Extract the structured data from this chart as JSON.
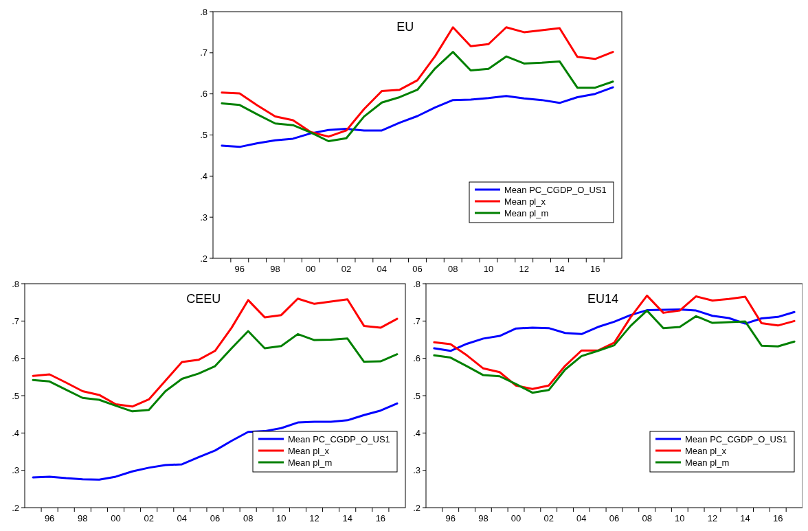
{
  "chart_data": [
    {
      "type": "line",
      "title": "EU",
      "x": [
        1995,
        1996,
        1997,
        1998,
        1999,
        2000,
        2001,
        2002,
        2003,
        2004,
        2005,
        2006,
        2007,
        2008,
        2009,
        2010,
        2011,
        2012,
        2013,
        2014,
        2015,
        2016,
        2017
      ],
      "xlim": [
        1994.5,
        2017.5
      ],
      "xticks": [
        {
          "value": 1995.5,
          "label": null
        },
        {
          "value": 1996,
          "label": "96"
        },
        {
          "value": 1996.5,
          "label": null
        },
        {
          "value": 1997.5,
          "label": null
        },
        {
          "value": 1998,
          "label": "98"
        },
        {
          "value": 1998.5,
          "label": null
        },
        {
          "value": 1999.5,
          "label": null
        },
        {
          "value": 2000,
          "label": "00"
        },
        {
          "value": 2000.5,
          "label": null
        },
        {
          "value": 2001.5,
          "label": null
        },
        {
          "value": 2002,
          "label": "02"
        },
        {
          "value": 2002.5,
          "label": null
        },
        {
          "value": 2003.5,
          "label": null
        },
        {
          "value": 2004,
          "label": "04"
        },
        {
          "value": 2004.5,
          "label": null
        },
        {
          "value": 2005.5,
          "label": null
        },
        {
          "value": 2006,
          "label": "06"
        },
        {
          "value": 2006.5,
          "label": null
        },
        {
          "value": 2007.5,
          "label": null
        },
        {
          "value": 2008,
          "label": "08"
        },
        {
          "value": 2008.5,
          "label": null
        },
        {
          "value": 2009.5,
          "label": null
        },
        {
          "value": 2010,
          "label": "10"
        },
        {
          "value": 2010.5,
          "label": null
        },
        {
          "value": 2011.5,
          "label": null
        },
        {
          "value": 2012,
          "label": "12"
        },
        {
          "value": 2012.5,
          "label": null
        },
        {
          "value": 2013.5,
          "label": null
        },
        {
          "value": 2014,
          "label": "14"
        },
        {
          "value": 2014.5,
          "label": null
        },
        {
          "value": 2015.5,
          "label": null
        },
        {
          "value": 2016,
          "label": "16"
        },
        {
          "value": 2016.5,
          "label": null
        }
      ],
      "ylim": [
        0.2,
        0.8
      ],
      "yticks": [
        {
          "value": 0.2,
          "label": ".2"
        },
        {
          "value": 0.3,
          "label": ".3"
        },
        {
          "value": 0.4,
          "label": ".4"
        },
        {
          "value": 0.5,
          "label": ".5"
        },
        {
          "value": 0.6,
          "label": ".6"
        },
        {
          "value": 0.7,
          "label": ".7"
        },
        {
          "value": 0.8,
          "label": ".8"
        }
      ],
      "legend": "bottom right",
      "series": [
        {
          "name": "Mean PC_CGDP_O_US1",
          "color": "#0000ff",
          "values": [
            0.474,
            0.471,
            0.48,
            0.487,
            0.491,
            0.504,
            0.512,
            0.515,
            0.511,
            0.511,
            0.53,
            0.546,
            0.567,
            0.585,
            0.586,
            0.59,
            0.595,
            0.589,
            0.585,
            0.578,
            0.592,
            0.6,
            0.616
          ]
        },
        {
          "name": "Mean pl_x",
          "color": "#ff0000",
          "values": [
            0.603,
            0.601,
            0.572,
            0.545,
            0.536,
            0.507,
            0.496,
            0.511,
            0.563,
            0.607,
            0.61,
            0.633,
            0.692,
            0.762,
            0.716,
            0.721,
            0.762,
            0.75,
            0.755,
            0.76,
            0.69,
            0.685,
            0.702
          ]
        },
        {
          "name": "Mean pl_m",
          "color": "#008000",
          "values": [
            0.577,
            0.573,
            0.55,
            0.528,
            0.524,
            0.506,
            0.485,
            0.492,
            0.545,
            0.579,
            0.592,
            0.61,
            0.662,
            0.702,
            0.657,
            0.661,
            0.691,
            0.674,
            0.676,
            0.679,
            0.615,
            0.615,
            0.63
          ]
        }
      ]
    },
    {
      "type": "line",
      "title": "CEEU",
      "x": [
        1995,
        1996,
        1997,
        1998,
        1999,
        2000,
        2001,
        2002,
        2003,
        2004,
        2005,
        2006,
        2007,
        2008,
        2009,
        2010,
        2011,
        2012,
        2013,
        2014,
        2015,
        2016,
        2017
      ],
      "xlim": [
        1994.5,
        2017.5
      ],
      "xticks": [
        {
          "value": 1995.5,
          "label": null
        },
        {
          "value": 1996,
          "label": "96"
        },
        {
          "value": 1996.5,
          "label": null
        },
        {
          "value": 1997.5,
          "label": null
        },
        {
          "value": 1998,
          "label": "98"
        },
        {
          "value": 1998.5,
          "label": null
        },
        {
          "value": 1999.5,
          "label": null
        },
        {
          "value": 2000,
          "label": "00"
        },
        {
          "value": 2000.5,
          "label": null
        },
        {
          "value": 2001.5,
          "label": null
        },
        {
          "value": 2002,
          "label": "02"
        },
        {
          "value": 2002.5,
          "label": null
        },
        {
          "value": 2003.5,
          "label": null
        },
        {
          "value": 2004,
          "label": "04"
        },
        {
          "value": 2004.5,
          "label": null
        },
        {
          "value": 2005.5,
          "label": null
        },
        {
          "value": 2006,
          "label": "06"
        },
        {
          "value": 2006.5,
          "label": null
        },
        {
          "value": 2007.5,
          "label": null
        },
        {
          "value": 2008,
          "label": "08"
        },
        {
          "value": 2008.5,
          "label": null
        },
        {
          "value": 2009.5,
          "label": null
        },
        {
          "value": 2010,
          "label": "10"
        },
        {
          "value": 2010.5,
          "label": null
        },
        {
          "value": 2011.5,
          "label": null
        },
        {
          "value": 2012,
          "label": "12"
        },
        {
          "value": 2012.5,
          "label": null
        },
        {
          "value": 2013.5,
          "label": null
        },
        {
          "value": 2014,
          "label": "14"
        },
        {
          "value": 2014.5,
          "label": null
        },
        {
          "value": 2015.5,
          "label": null
        },
        {
          "value": 2016,
          "label": "16"
        },
        {
          "value": 2016.5,
          "label": null
        }
      ],
      "ylim": [
        0.2,
        0.8
      ],
      "yticks": [
        {
          "value": 0.2,
          "label": ".2"
        },
        {
          "value": 0.3,
          "label": ".3"
        },
        {
          "value": 0.4,
          "label": ".4"
        },
        {
          "value": 0.5,
          "label": ".5"
        },
        {
          "value": 0.6,
          "label": ".6"
        },
        {
          "value": 0.7,
          "label": ".7"
        },
        {
          "value": 0.8,
          "label": ".8"
        }
      ],
      "legend": "bottom right",
      "series": [
        {
          "name": "Mean PC_CGDP_O_US1",
          "color": "#0000ff",
          "values": [
            0.281,
            0.283,
            0.279,
            0.276,
            0.275,
            0.283,
            0.297,
            0.307,
            0.314,
            0.316,
            0.335,
            0.353,
            0.379,
            0.403,
            0.405,
            0.413,
            0.428,
            0.43,
            0.43,
            0.434,
            0.448,
            0.46,
            0.479
          ]
        },
        {
          "name": "Mean pl_x",
          "color": "#ff0000",
          "values": [
            0.553,
            0.557,
            0.535,
            0.512,
            0.502,
            0.477,
            0.471,
            0.49,
            0.54,
            0.59,
            0.596,
            0.62,
            0.682,
            0.756,
            0.71,
            0.716,
            0.76,
            0.746,
            0.752,
            0.758,
            0.687,
            0.682,
            0.706
          ]
        },
        {
          "name": "Mean pl_m",
          "color": "#008000",
          "values": [
            0.542,
            0.538,
            0.516,
            0.494,
            0.489,
            0.473,
            0.458,
            0.462,
            0.512,
            0.545,
            0.559,
            0.579,
            0.627,
            0.673,
            0.627,
            0.633,
            0.665,
            0.649,
            0.65,
            0.653,
            0.591,
            0.592,
            0.611
          ]
        }
      ]
    },
    {
      "type": "line",
      "title": "EU14",
      "x": [
        1995,
        1996,
        1997,
        1998,
        1999,
        2000,
        2001,
        2002,
        2003,
        2004,
        2005,
        2006,
        2007,
        2008,
        2009,
        2010,
        2011,
        2012,
        2013,
        2014,
        2015,
        2016,
        2017
      ],
      "xlim": [
        1994.5,
        2017.5
      ],
      "xticks": [
        {
          "value": 1995.5,
          "label": null
        },
        {
          "value": 1996,
          "label": "96"
        },
        {
          "value": 1996.5,
          "label": null
        },
        {
          "value": 1997.5,
          "label": null
        },
        {
          "value": 1998,
          "label": "98"
        },
        {
          "value": 1998.5,
          "label": null
        },
        {
          "value": 1999.5,
          "label": null
        },
        {
          "value": 2000,
          "label": "00"
        },
        {
          "value": 2000.5,
          "label": null
        },
        {
          "value": 2001.5,
          "label": null
        },
        {
          "value": 2002,
          "label": "02"
        },
        {
          "value": 2002.5,
          "label": null
        },
        {
          "value": 2003.5,
          "label": null
        },
        {
          "value": 2004,
          "label": "04"
        },
        {
          "value": 2004.5,
          "label": null
        },
        {
          "value": 2005.5,
          "label": null
        },
        {
          "value": 2006,
          "label": "06"
        },
        {
          "value": 2006.5,
          "label": null
        },
        {
          "value": 2007.5,
          "label": null
        },
        {
          "value": 2008,
          "label": "08"
        },
        {
          "value": 2008.5,
          "label": null
        },
        {
          "value": 2009.5,
          "label": null
        },
        {
          "value": 2010,
          "label": "10"
        },
        {
          "value": 2010.5,
          "label": null
        },
        {
          "value": 2011.5,
          "label": null
        },
        {
          "value": 2012,
          "label": "12"
        },
        {
          "value": 2012.5,
          "label": null
        },
        {
          "value": 2013.5,
          "label": null
        },
        {
          "value": 2014,
          "label": "14"
        },
        {
          "value": 2014.5,
          "label": null
        },
        {
          "value": 2015.5,
          "label": null
        },
        {
          "value": 2016,
          "label": "16"
        },
        {
          "value": 2016.5,
          "label": null
        }
      ],
      "ylim": [
        0.2,
        0.8
      ],
      "yticks": [
        {
          "value": 0.2,
          "label": ".2"
        },
        {
          "value": 0.3,
          "label": ".3"
        },
        {
          "value": 0.4,
          "label": ".4"
        },
        {
          "value": 0.5,
          "label": ".5"
        },
        {
          "value": 0.6,
          "label": ".6"
        },
        {
          "value": 0.7,
          "label": ".7"
        },
        {
          "value": 0.8,
          "label": ".8"
        }
      ],
      "legend": "bottom right",
      "series": [
        {
          "name": "Mean PC_CGDP_O_US1",
          "color": "#0000ff",
          "values": [
            0.627,
            0.62,
            0.639,
            0.653,
            0.66,
            0.68,
            0.682,
            0.681,
            0.668,
            0.665,
            0.684,
            0.698,
            0.716,
            0.729,
            0.73,
            0.731,
            0.728,
            0.714,
            0.708,
            0.693,
            0.707,
            0.711,
            0.724
          ]
        },
        {
          "name": "Mean pl_x",
          "color": "#ff0000",
          "values": [
            0.643,
            0.638,
            0.608,
            0.573,
            0.563,
            0.527,
            0.518,
            0.527,
            0.58,
            0.621,
            0.621,
            0.642,
            0.71,
            0.768,
            0.722,
            0.728,
            0.766,
            0.755,
            0.759,
            0.765,
            0.694,
            0.688,
            0.7
          ]
        },
        {
          "name": "Mean pl_m",
          "color": "#008000",
          "values": [
            0.608,
            0.602,
            0.579,
            0.555,
            0.552,
            0.531,
            0.508,
            0.515,
            0.57,
            0.606,
            0.62,
            0.635,
            0.687,
            0.728,
            0.681,
            0.684,
            0.713,
            0.695,
            0.697,
            0.699,
            0.634,
            0.632,
            0.645
          ]
        }
      ]
    }
  ]
}
